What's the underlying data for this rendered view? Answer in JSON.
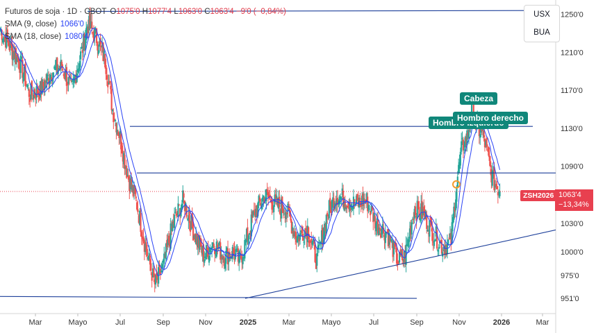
{
  "legend": {
    "title": "Futuros de soja · 1D · CBOT",
    "open_label": "O",
    "open": "1075'0",
    "high_label": "H",
    "high": "1077'4",
    "low_label": "L",
    "low": "1063'0",
    "close_label": "C",
    "close": "1063'4",
    "change": "−9'0 (−0,84%)",
    "ma9_label": "SMA (9, close)",
    "ma9_value": "1066'0",
    "ma18_label": "SMA (18, close)",
    "ma18_value": "1080'4"
  },
  "currency": {
    "top": "USX",
    "bottom": "BUA"
  },
  "annotations": {
    "head": "Cabeza",
    "left_shoulder": "Hombro izquierdo",
    "right_shoulder": "Hombro derecho"
  },
  "price_tag": {
    "symbol": "ZSH2026",
    "price": "1063'4",
    "pct": "−13,34%"
  },
  "colors": {
    "up": "#26a69a",
    "down": "#ef5350",
    "ma": "#2942f5",
    "trendline": "#1d3f9a",
    "tag": "#e8404f",
    "callout": "#10877a"
  },
  "chart_data": {
    "type": "candlestick",
    "y_range": [
      935,
      1265
    ],
    "y_ticks": [
      1250,
      1210,
      1170,
      1130,
      1090,
      1063.5,
      1030,
      1000,
      975,
      951
    ],
    "y_tick_labels": [
      "1250'0",
      "1210'0",
      "1170'0",
      "1130'0",
      "1090'0",
      "1063'4",
      "1030'0",
      "1000'0",
      "975'0",
      "951'0"
    ],
    "x_tick_labels": [
      "Mar",
      "Mayo",
      "Jul",
      "Sep",
      "Nov",
      "2025",
      "Mar",
      "Mayo",
      "Jul",
      "Sep",
      "Nov",
      "2026",
      "Mar"
    ],
    "x_tick_dates": [
      "2024-03-01",
      "2024-05-01",
      "2024-07-01",
      "2024-09-01",
      "2024-11-01",
      "2025-01-01",
      "2025-03-01",
      "2025-05-01",
      "2025-07-01",
      "2025-09-01",
      "2025-11-01",
      "2026-01-01",
      "2026-03-01"
    ],
    "x_range": [
      "2024-01-10",
      "2026-03-20"
    ],
    "price_path": [
      [
        "2024-01-10",
        1235
      ],
      [
        "2024-01-25",
        1215
      ],
      [
        "2024-02-10",
        1195
      ],
      [
        "2024-02-22",
        1165
      ],
      [
        "2024-03-08",
        1170
      ],
      [
        "2024-03-25",
        1190
      ],
      [
        "2024-04-08",
        1195
      ],
      [
        "2024-04-22",
        1170
      ],
      [
        "2024-05-08",
        1215
      ],
      [
        "2024-05-15",
        1240
      ],
      [
        "2024-05-28",
        1225
      ],
      [
        "2024-06-10",
        1200
      ],
      [
        "2024-06-20",
        1150
      ],
      [
        "2024-07-01",
        1120
      ],
      [
        "2024-07-12",
        1080
      ],
      [
        "2024-07-25",
        1050
      ],
      [
        "2024-08-05",
        1010
      ],
      [
        "2024-08-20",
        965
      ],
      [
        "2024-09-01",
        985
      ],
      [
        "2024-09-15",
        1030
      ],
      [
        "2024-09-30",
        1055
      ],
      [
        "2024-10-15",
        1020
      ],
      [
        "2024-10-30",
        995
      ],
      [
        "2024-11-12",
        1010
      ],
      [
        "2024-11-28",
        995
      ],
      [
        "2024-12-10",
        1000
      ],
      [
        "2024-12-20",
        990
      ],
      [
        "2025-01-10",
        1040
      ],
      [
        "2025-01-25",
        1060
      ],
      [
        "2025-02-10",
        1050
      ],
      [
        "2025-02-25",
        1045
      ],
      [
        "2025-03-12",
        1015
      ],
      [
        "2025-03-28",
        1025
      ],
      [
        "2025-04-10",
        990
      ],
      [
        "2025-04-25",
        1040
      ],
      [
        "2025-05-08",
        1060
      ],
      [
        "2025-05-22",
        1055
      ],
      [
        "2025-06-05",
        1050
      ],
      [
        "2025-06-20",
        1055
      ],
      [
        "2025-07-05",
        1030
      ],
      [
        "2025-07-20",
        1020
      ],
      [
        "2025-08-05",
        990
      ],
      [
        "2025-08-15",
        995
      ],
      [
        "2025-08-28",
        1045
      ],
      [
        "2025-09-10",
        1040
      ],
      [
        "2025-09-25",
        1020
      ],
      [
        "2025-10-08",
        1005
      ],
      [
        "2025-10-20",
        1010
      ],
      [
        "2025-10-28",
        1070
      ],
      [
        "2025-11-05",
        1110
      ],
      [
        "2025-11-12",
        1120
      ],
      [
        "2025-11-20",
        1150
      ],
      [
        "2025-11-27",
        1130
      ],
      [
        "2025-12-05",
        1125
      ],
      [
        "2025-12-12",
        1100
      ],
      [
        "2025-12-20",
        1075
      ],
      [
        "2025-12-30",
        1063.5
      ]
    ],
    "trendlines": [
      {
        "from": [
          "2024-05-15",
          1253
        ],
        "to": [
          "2026-03-20",
          1254
        ]
      },
      {
        "from": [
          "2024-07-15",
          1132
        ],
        "to": [
          "2026-02-15",
          1132
        ]
      },
      {
        "from": [
          "2024-07-25",
          1083
        ],
        "to": [
          "2026-03-20",
          1083
        ]
      },
      {
        "from": [
          "2024-01-10",
          953
        ],
        "to": [
          "2025-09-01",
          951
        ]
      },
      {
        "from": [
          "2024-12-28",
          951
        ],
        "to": [
          "2026-03-20",
          1023
        ]
      }
    ],
    "last_close": 1063.5
  }
}
